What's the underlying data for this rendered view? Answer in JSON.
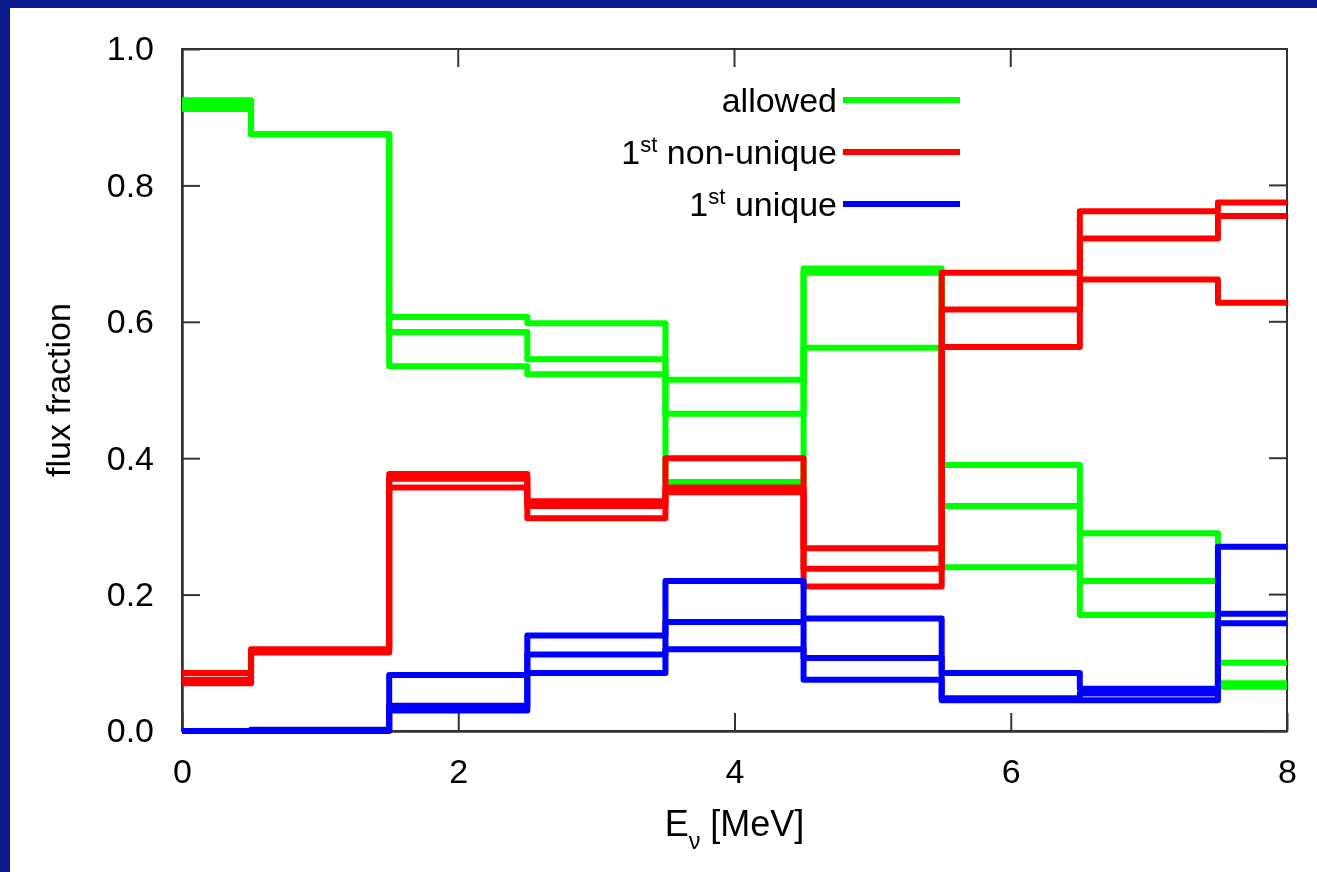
{
  "chart_data": {
    "type": "step",
    "xlabel": "E$_{ν}$ [MeV]",
    "ylabel": "flux fraction",
    "x": [
      0,
      0.5,
      1.5,
      2.5,
      3.5,
      4.5,
      5.5,
      6.5,
      7.5,
      8
    ],
    "series": [
      {
        "name": "allowed",
        "color": "#00ff00",
        "values": [
          0.925,
          0.875,
          0.607,
          0.598,
          0.515,
          0.678,
          0.39,
          0.29,
          0.1,
          0.1
        ]
      },
      {
        "color": "#00ff00",
        "values": [
          0.918,
          0.875,
          0.585,
          0.545,
          0.465,
          0.672,
          0.33,
          0.22,
          0.07,
          0.07
        ]
      },
      {
        "color": "#00ff00",
        "values": [
          0.912,
          0.875,
          0.535,
          0.523,
          0.365,
          0.562,
          0.24,
          0.17,
          0.065,
          0.065
        ]
      },
      {
        "name": "1$^{st}$ non-unique",
        "color": "#ff0000",
        "values": [
          0.085,
          0.12,
          0.377,
          0.337,
          0.4,
          0.268,
          0.672,
          0.762,
          0.775,
          0.775
        ]
      },
      {
        "color": "#ff0000",
        "values": [
          0.075,
          0.118,
          0.37,
          0.33,
          0.357,
          0.238,
          0.618,
          0.722,
          0.755,
          0.755
        ]
      },
      {
        "color": "#ff0000",
        "values": [
          0.07,
          0.115,
          0.357,
          0.312,
          0.35,
          0.212,
          0.563,
          0.662,
          0.628,
          0.628
        ]
      },
      {
        "name": "1$^{st}$ unique",
        "color": "#0000ff",
        "values": [
          0,
          0.002,
          0.082,
          0.14,
          0.22,
          0.165,
          0.085,
          0.062,
          0.27,
          0.27
        ]
      },
      {
        "color": "#0000ff",
        "values": [
          0,
          0.001,
          0.037,
          0.112,
          0.16,
          0.107,
          0.048,
          0.055,
          0.172,
          0.172
        ]
      },
      {
        "color": "#0000ff",
        "values": [
          0,
          0,
          0.03,
          0.085,
          0.12,
          0.075,
          0.045,
          0.045,
          0.158,
          0.158
        ]
      }
    ],
    "xlim": [
      0,
      8
    ],
    "xticks": [
      0,
      2,
      4,
      6,
      8
    ],
    "ylim": [
      0,
      1
    ],
    "yticks": [
      {
        "value": 0,
        "label": "0.0"
      },
      {
        "value": 0.2,
        "label": "0.2"
      },
      {
        "value": 0.4,
        "label": "0.4"
      },
      {
        "value": 0.6,
        "label": "0.6"
      },
      {
        "value": 0.8,
        "label": "0.8"
      },
      {
        "value": 1,
        "label": "1.0"
      }
    ],
    "grid": false,
    "legend": "top right",
    "line_style": "solid",
    "marker": "none"
  }
}
